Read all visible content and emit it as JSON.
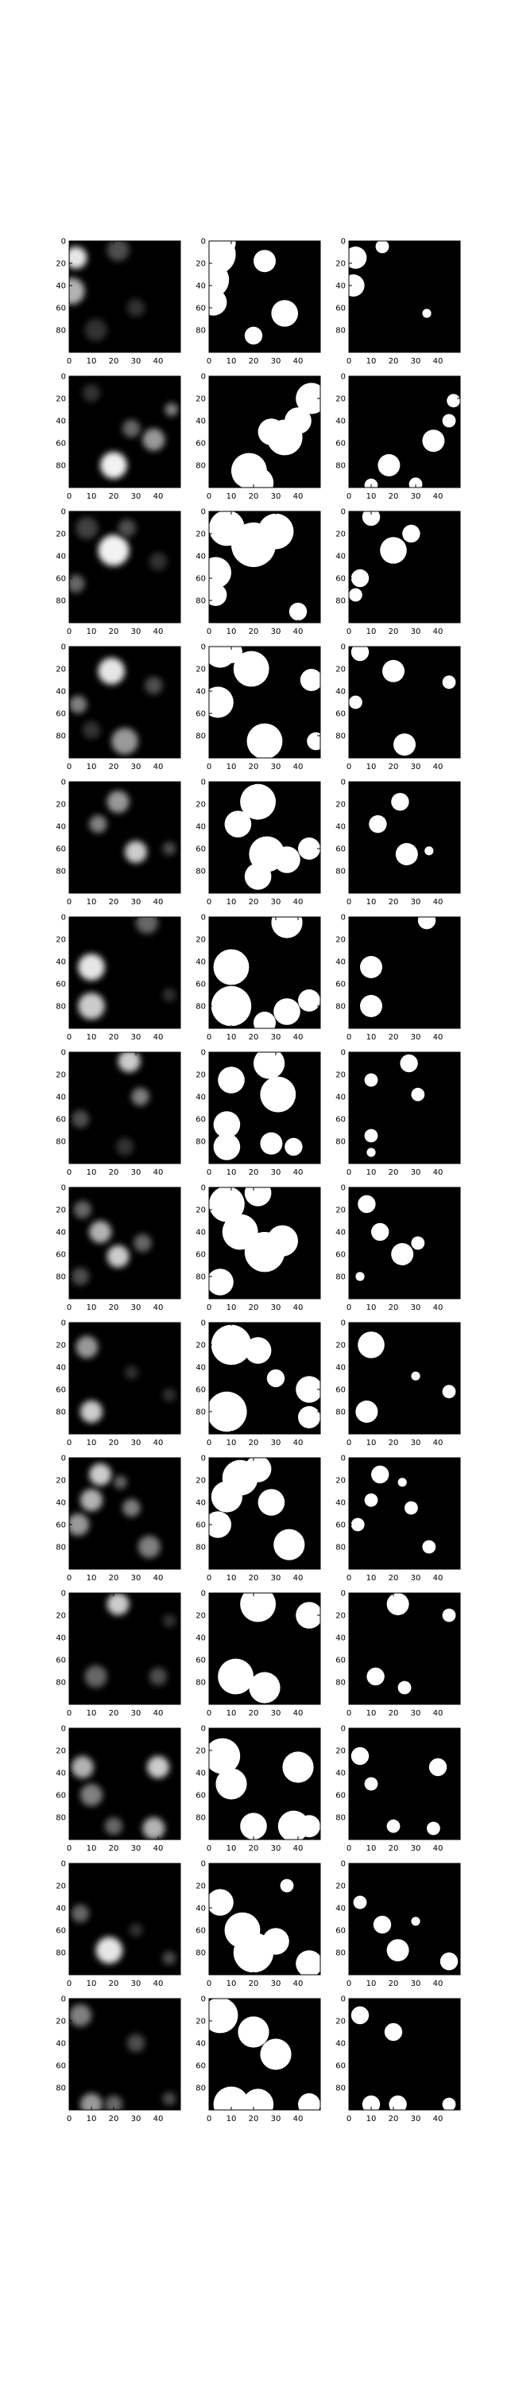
{
  "chart_data": {
    "type": "heatmap",
    "grid": {
      "rows": 14,
      "cols": 3
    },
    "image_shape": [
      100,
      50
    ],
    "x_ticks": [
      0,
      10,
      20,
      30,
      40
    ],
    "y_ticks": [
      0,
      20,
      40,
      60,
      80
    ],
    "colormap": "gray",
    "columns": [
      "blurred-input",
      "segmentation-mask",
      "thresholded-peaks"
    ],
    "blob_points_note": "blob centers [x, y] in data units, r = radius in data units, v = intensity",
    "rows": [
      {
        "blobs": [
          [
            3,
            15,
            5,
            0.9
          ],
          [
            1,
            45,
            6,
            0.7
          ],
          [
            22,
            8,
            5,
            0.3
          ],
          [
            30,
            60,
            4,
            0.2
          ],
          [
            12,
            80,
            5,
            0.2
          ]
        ],
        "mask": [
          [
            3,
            12,
            9
          ],
          [
            1,
            35,
            8
          ],
          [
            2,
            55,
            6
          ],
          [
            7,
            2,
            5
          ],
          [
            25,
            18,
            5
          ],
          [
            34,
            65,
            6
          ],
          [
            20,
            85,
            4
          ]
        ],
        "peaks": [
          [
            3,
            15,
            5
          ],
          [
            2,
            40,
            5
          ],
          [
            15,
            5,
            3
          ],
          [
            35,
            65,
            2
          ]
        ]
      },
      {
        "blobs": [
          [
            20,
            80,
            6,
            0.95
          ],
          [
            38,
            57,
            5,
            0.6
          ],
          [
            28,
            47,
            4,
            0.4
          ],
          [
            46,
            30,
            3,
            0.5
          ],
          [
            10,
            15,
            4,
            0.2
          ]
        ],
        "mask": [
          [
            18,
            85,
            8
          ],
          [
            22,
            96,
            7
          ],
          [
            34,
            55,
            8
          ],
          [
            40,
            40,
            6
          ],
          [
            46,
            20,
            7
          ],
          [
            28,
            50,
            6
          ]
        ],
        "peaks": [
          [
            18,
            80,
            5
          ],
          [
            38,
            58,
            5
          ],
          [
            45,
            40,
            3
          ],
          [
            47,
            22,
            3
          ],
          [
            30,
            97,
            3
          ],
          [
            10,
            98,
            3
          ]
        ]
      },
      {
        "blobs": [
          [
            20,
            35,
            7,
            0.95
          ],
          [
            26,
            15,
            4,
            0.3
          ],
          [
            3,
            65,
            4,
            0.4
          ],
          [
            8,
            15,
            5,
            0.25
          ],
          [
            40,
            45,
            4,
            0.2
          ]
        ],
        "mask": [
          [
            20,
            30,
            10
          ],
          [
            30,
            18,
            8
          ],
          [
            8,
            15,
            8
          ],
          [
            3,
            55,
            7
          ],
          [
            3,
            75,
            5
          ],
          [
            40,
            90,
            4
          ]
        ],
        "peaks": [
          [
            20,
            35,
            6
          ],
          [
            28,
            20,
            4
          ],
          [
            5,
            60,
            4
          ],
          [
            3,
            75,
            3
          ],
          [
            10,
            5,
            4
          ]
        ]
      },
      {
        "blobs": [
          [
            19,
            22,
            6,
            0.9
          ],
          [
            4,
            52,
            4,
            0.5
          ],
          [
            25,
            85,
            6,
            0.6
          ],
          [
            38,
            35,
            4,
            0.3
          ],
          [
            10,
            75,
            4,
            0.2
          ]
        ],
        "mask": [
          [
            5,
            5,
            7
          ],
          [
            19,
            20,
            8
          ],
          [
            4,
            50,
            7
          ],
          [
            25,
            85,
            8
          ],
          [
            46,
            30,
            5
          ],
          [
            48,
            85,
            4
          ],
          [
            10,
            5,
            5
          ]
        ],
        "peaks": [
          [
            20,
            22,
            5
          ],
          [
            3,
            50,
            3
          ],
          [
            25,
            88,
            5
          ],
          [
            45,
            32,
            3
          ],
          [
            5,
            5,
            4
          ]
        ]
      },
      {
        "blobs": [
          [
            13,
            38,
            4,
            0.5
          ],
          [
            22,
            18,
            5,
            0.6
          ],
          [
            30,
            63,
            5,
            0.8
          ],
          [
            45,
            60,
            3,
            0.3
          ]
        ],
        "mask": [
          [
            13,
            38,
            6
          ],
          [
            22,
            18,
            8
          ],
          [
            26,
            65,
            8
          ],
          [
            35,
            70,
            6
          ],
          [
            45,
            60,
            5
          ],
          [
            22,
            85,
            6
          ]
        ],
        "peaks": [
          [
            13,
            38,
            4
          ],
          [
            23,
            18,
            4
          ],
          [
            26,
            65,
            5
          ],
          [
            36,
            62,
            2
          ]
        ]
      },
      {
        "blobs": [
          [
            10,
            45,
            6,
            0.9
          ],
          [
            10,
            80,
            6,
            0.8
          ],
          [
            35,
            5,
            5,
            0.4
          ],
          [
            45,
            70,
            3,
            0.2
          ]
        ],
        "mask": [
          [
            10,
            45,
            8
          ],
          [
            10,
            80,
            9
          ],
          [
            35,
            5,
            7
          ],
          [
            35,
            85,
            6
          ],
          [
            45,
            75,
            5
          ],
          [
            25,
            95,
            5
          ]
        ],
        "peaks": [
          [
            10,
            45,
            5
          ],
          [
            10,
            80,
            5
          ],
          [
            35,
            3,
            4
          ]
        ]
      },
      {
        "blobs": [
          [
            27,
            8,
            5,
            0.8
          ],
          [
            32,
            40,
            4,
            0.5
          ],
          [
            5,
            60,
            4,
            0.3
          ],
          [
            25,
            85,
            4,
            0.2
          ]
        ],
        "mask": [
          [
            10,
            25,
            6
          ],
          [
            27,
            10,
            7
          ],
          [
            31,
            38,
            8
          ],
          [
            8,
            65,
            6
          ],
          [
            8,
            85,
            6
          ],
          [
            28,
            82,
            5
          ],
          [
            38,
            85,
            4
          ]
        ],
        "peaks": [
          [
            10,
            25,
            3
          ],
          [
            27,
            10,
            4
          ],
          [
            31,
            38,
            3
          ],
          [
            10,
            75,
            3
          ],
          [
            10,
            90,
            2
          ]
        ]
      },
      {
        "blobs": [
          [
            14,
            40,
            5,
            0.7
          ],
          [
            22,
            62,
            5,
            0.8
          ],
          [
            6,
            20,
            4,
            0.4
          ],
          [
            33,
            50,
            4,
            0.4
          ],
          [
            5,
            80,
            4,
            0.3
          ]
        ],
        "mask": [
          [
            8,
            15,
            8
          ],
          [
            22,
            5,
            6
          ],
          [
            14,
            40,
            8
          ],
          [
            25,
            58,
            9
          ],
          [
            33,
            48,
            7
          ],
          [
            5,
            85,
            6
          ]
        ],
        "peaks": [
          [
            8,
            15,
            4
          ],
          [
            14,
            40,
            4
          ],
          [
            24,
            60,
            5
          ],
          [
            31,
            50,
            3
          ],
          [
            5,
            80,
            2
          ]
        ]
      },
      {
        "blobs": [
          [
            8,
            22,
            5,
            0.6
          ],
          [
            10,
            80,
            5,
            0.8
          ],
          [
            28,
            45,
            3,
            0.2
          ],
          [
            45,
            65,
            3,
            0.2
          ]
        ],
        "mask": [
          [
            10,
            20,
            9
          ],
          [
            22,
            25,
            6
          ],
          [
            8,
            80,
            9
          ],
          [
            45,
            60,
            6
          ],
          [
            45,
            85,
            5
          ],
          [
            30,
            50,
            4
          ]
        ],
        "peaks": [
          [
            10,
            20,
            6
          ],
          [
            8,
            80,
            5
          ],
          [
            30,
            48,
            2
          ],
          [
            45,
            62,
            3
          ]
        ]
      },
      {
        "blobs": [
          [
            14,
            15,
            5,
            0.8
          ],
          [
            10,
            38,
            5,
            0.7
          ],
          [
            4,
            60,
            5,
            0.6
          ],
          [
            28,
            45,
            4,
            0.5
          ],
          [
            36,
            80,
            5,
            0.5
          ],
          [
            23,
            22,
            3,
            0.4
          ]
        ],
        "mask": [
          [
            14,
            18,
            8
          ],
          [
            8,
            35,
            7
          ],
          [
            4,
            60,
            6
          ],
          [
            28,
            40,
            6
          ],
          [
            36,
            78,
            7
          ],
          [
            22,
            10,
            6
          ]
        ],
        "peaks": [
          [
            14,
            15,
            4
          ],
          [
            10,
            38,
            3
          ],
          [
            4,
            60,
            3
          ],
          [
            28,
            45,
            3
          ],
          [
            36,
            80,
            3
          ],
          [
            24,
            22,
            2
          ]
        ]
      },
      {
        "blobs": [
          [
            22,
            10,
            5,
            0.8
          ],
          [
            12,
            75,
            5,
            0.4
          ],
          [
            40,
            75,
            4,
            0.3
          ],
          [
            45,
            25,
            3,
            0.2
          ]
        ],
        "mask": [
          [
            22,
            10,
            8
          ],
          [
            12,
            75,
            8
          ],
          [
            25,
            85,
            7
          ],
          [
            45,
            20,
            6
          ]
        ],
        "peaks": [
          [
            22,
            10,
            5
          ],
          [
            12,
            75,
            4
          ],
          [
            25,
            85,
            3
          ],
          [
            45,
            20,
            3
          ]
        ]
      },
      {
        "blobs": [
          [
            6,
            35,
            5,
            0.7
          ],
          [
            40,
            35,
            5,
            0.8
          ],
          [
            38,
            90,
            5,
            0.7
          ],
          [
            20,
            88,
            4,
            0.4
          ],
          [
            10,
            60,
            5,
            0.5
          ]
        ],
        "mask": [
          [
            6,
            25,
            8
          ],
          [
            10,
            50,
            7
          ],
          [
            40,
            35,
            7
          ],
          [
            38,
            88,
            7
          ],
          [
            20,
            88,
            6
          ],
          [
            45,
            88,
            5
          ]
        ],
        "peaks": [
          [
            5,
            25,
            4
          ],
          [
            10,
            50,
            3
          ],
          [
            40,
            35,
            4
          ],
          [
            38,
            90,
            3
          ],
          [
            20,
            88,
            3
          ]
        ]
      },
      {
        "blobs": [
          [
            5,
            45,
            4,
            0.4
          ],
          [
            18,
            78,
            6,
            0.9
          ],
          [
            30,
            60,
            3,
            0.2
          ],
          [
            45,
            85,
            3,
            0.3
          ]
        ],
        "mask": [
          [
            5,
            35,
            6
          ],
          [
            15,
            60,
            8
          ],
          [
            20,
            80,
            9
          ],
          [
            30,
            70,
            6
          ],
          [
            35,
            20,
            3
          ],
          [
            45,
            90,
            6
          ]
        ],
        "peaks": [
          [
            5,
            35,
            3
          ],
          [
            15,
            55,
            4
          ],
          [
            22,
            78,
            5
          ],
          [
            45,
            88,
            4
          ],
          [
            30,
            52,
            2
          ]
        ]
      },
      {
        "blobs": [
          [
            5,
            15,
            5,
            0.5
          ],
          [
            10,
            95,
            5,
            0.6
          ],
          [
            20,
            95,
            4,
            0.4
          ],
          [
            30,
            40,
            4,
            0.3
          ],
          [
            45,
            90,
            3,
            0.3
          ]
        ],
        "mask": [
          [
            5,
            15,
            8
          ],
          [
            20,
            30,
            7
          ],
          [
            30,
            50,
            7
          ],
          [
            10,
            95,
            8
          ],
          [
            22,
            95,
            7
          ],
          [
            45,
            95,
            5
          ]
        ],
        "peaks": [
          [
            5,
            15,
            4
          ],
          [
            20,
            30,
            4
          ],
          [
            10,
            95,
            4
          ],
          [
            22,
            95,
            4
          ],
          [
            45,
            95,
            3
          ]
        ]
      }
    ]
  }
}
